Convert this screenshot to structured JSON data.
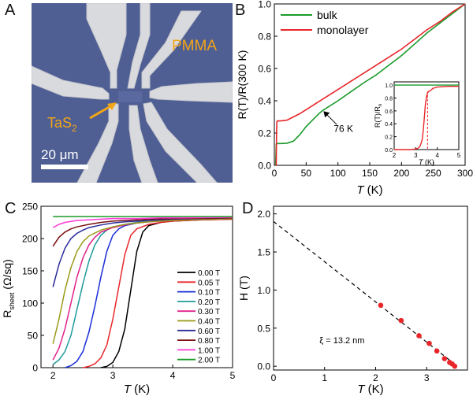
{
  "panels": {
    "a": {
      "letter": "A",
      "label_pmma": "PMMA",
      "label_tas2_main": "TaS",
      "label_tas2_sub": "2",
      "scale_bar": "20 μm"
    },
    "b": {
      "letter": "B"
    },
    "c": {
      "letter": "C"
    },
    "d": {
      "letter": "D"
    }
  },
  "colors": {
    "green": "#1a9a2a",
    "red": "#e8262a",
    "substrate": "#4f5f94",
    "electrode": "#d9dade",
    "label_orange": "#f2a516",
    "black": "#000000"
  },
  "chart_data": [
    {
      "id": "B",
      "type": "line",
      "xlabel_main": "T",
      "xlabel_unit": " (K)",
      "ylabel": "R(T)/R(300 K)",
      "xlim": [
        0,
        300
      ],
      "ylim": [
        0,
        1.0
      ],
      "xticks": [
        0,
        50,
        100,
        150,
        200,
        250,
        300
      ],
      "yticks": [
        0.0,
        0.2,
        0.4,
        0.6,
        0.8,
        1.0
      ],
      "ytick_labels": [
        "0.0",
        "0.2",
        "0.4",
        "0.6",
        "0.8",
        "1.0"
      ],
      "legend_position": "top-left",
      "series": [
        {
          "name": "bulk",
          "color": "#1a9a2a",
          "x": [
            2,
            3,
            5,
            10,
            20,
            30,
            40,
            50,
            60,
            70,
            76,
            80,
            100,
            120,
            140,
            160,
            180,
            200,
            220,
            240,
            260,
            280,
            300
          ],
          "y": [
            0.0,
            0.13,
            0.135,
            0.135,
            0.137,
            0.15,
            0.19,
            0.24,
            0.28,
            0.32,
            0.34,
            0.35,
            0.4,
            0.455,
            0.51,
            0.56,
            0.62,
            0.68,
            0.75,
            0.82,
            0.88,
            0.94,
            1.0
          ]
        },
        {
          "name": "monolayer",
          "color": "#e8262a",
          "x": [
            2,
            3,
            3.5,
            4,
            5,
            10,
            20,
            30,
            40,
            50,
            60,
            80,
            100,
            120,
            140,
            160,
            180,
            200,
            220,
            240,
            260,
            280,
            300
          ],
          "y": [
            0.0,
            0.0,
            0.2,
            0.27,
            0.275,
            0.275,
            0.28,
            0.3,
            0.32,
            0.345,
            0.37,
            0.42,
            0.47,
            0.52,
            0.57,
            0.62,
            0.67,
            0.72,
            0.78,
            0.84,
            0.89,
            0.95,
            1.0
          ]
        }
      ],
      "annotation": {
        "text": "76 K",
        "x": 76,
        "y": 0.34
      },
      "inset": {
        "xlabel_main": "T",
        "xlabel_unit": " (K)",
        "ylabel": "R(T)/R",
        "ylabel_sub": "n",
        "xlim": [
          2,
          5
        ],
        "ylim": [
          0,
          1.05
        ],
        "xticks": [
          2,
          3,
          4,
          5
        ],
        "yticks": [
          0.0,
          0.2,
          0.4,
          0.6,
          0.8,
          1.0
        ],
        "ytick_labels": [
          "0.0",
          "0.2",
          "0.4",
          "0.6",
          "0.8",
          "1.0"
        ],
        "vline_x": 3.55,
        "series": [
          {
            "color": "#1a9a2a",
            "x": [
              2,
              5
            ],
            "y": [
              1.0,
              1.0
            ]
          },
          {
            "color": "#e8262a",
            "x": [
              2.0,
              2.8,
              3.0,
              3.1,
              3.2,
              3.3,
              3.35,
              3.4,
              3.45,
              3.5,
              3.55,
              3.6,
              3.7,
              3.8,
              4.0,
              4.5,
              5.0
            ],
            "y": [
              0.0,
              0.0,
              0.01,
              0.02,
              0.05,
              0.15,
              0.3,
              0.5,
              0.7,
              0.82,
              0.88,
              0.9,
              0.92,
              0.95,
              0.97,
              0.98,
              0.98
            ]
          }
        ]
      }
    },
    {
      "id": "C",
      "type": "line",
      "xlabel_main": "T",
      "xlabel_unit": " (K)",
      "ylabel_main": "R",
      "ylabel_sub": "sheet",
      "ylabel_unit": " (Ω/sq)",
      "xlim": [
        1.8,
        5.0
      ],
      "ylim": [
        0,
        250
      ],
      "xticks": [
        2,
        3,
        4,
        5
      ],
      "yticks": [
        0,
        50,
        100,
        150,
        200,
        250
      ],
      "legend_position": "right",
      "series": [
        {
          "name": "0.00 T",
          "color": "#000000",
          "x": [
            2.8,
            2.9,
            3.0,
            3.1,
            3.2,
            3.3,
            3.4,
            3.5,
            3.6,
            3.8,
            4.0,
            4.5,
            5.0
          ],
          "y": [
            0,
            2,
            8,
            25,
            60,
            120,
            180,
            210,
            220,
            225,
            227,
            229,
            230
          ]
        },
        {
          "name": "0.05 T",
          "color": "#e8262a",
          "x": [
            2.5,
            2.6,
            2.7,
            2.8,
            2.9,
            3.0,
            3.1,
            3.2,
            3.3,
            3.4,
            3.6,
            3.8,
            4.0,
            4.5,
            5.0
          ],
          "y": [
            0,
            2,
            6,
            15,
            35,
            75,
            125,
            175,
            205,
            215,
            222,
            225,
            227,
            229,
            230
          ]
        },
        {
          "name": "0.10 T",
          "color": "#1a2fd9",
          "x": [
            2.2,
            2.3,
            2.4,
            2.5,
            2.6,
            2.7,
            2.8,
            2.9,
            3.0,
            3.1,
            3.2,
            3.4,
            3.6,
            3.8,
            4.0,
            5.0
          ],
          "y": [
            0,
            3,
            10,
            25,
            55,
            95,
            140,
            180,
            205,
            215,
            220,
            224,
            226,
            228,
            229,
            231
          ]
        },
        {
          "name": "0.20 T",
          "color": "#1f9a9a",
          "x": [
            2.0,
            2.1,
            2.2,
            2.3,
            2.4,
            2.5,
            2.6,
            2.7,
            2.8,
            2.9,
            3.0,
            3.2,
            3.4,
            3.6,
            4.0,
            5.0
          ],
          "y": [
            5,
            12,
            25,
            50,
            90,
            130,
            165,
            190,
            205,
            213,
            218,
            222,
            225,
            227,
            229,
            231
          ]
        },
        {
          "name": "0.30 T",
          "color": "#e0218a",
          "x": [
            2.0,
            2.1,
            2.2,
            2.3,
            2.4,
            2.5,
            2.6,
            2.7,
            2.8,
            3.0,
            3.2,
            3.4,
            3.6,
            4.0,
            5.0
          ],
          "y": [
            12,
            30,
            60,
            100,
            140,
            170,
            190,
            202,
            210,
            217,
            221,
            224,
            226,
            228,
            231
          ]
        },
        {
          "name": "0.40 T",
          "color": "#9a9a1a",
          "x": [
            2.0,
            2.1,
            2.2,
            2.3,
            2.4,
            2.5,
            2.6,
            2.8,
            3.0,
            3.2,
            3.4,
            3.6,
            4.0,
            5.0
          ],
          "y": [
            37,
            75,
            120,
            155,
            180,
            195,
            204,
            213,
            218,
            222,
            224,
            226,
            228,
            231
          ]
        },
        {
          "name": "0.60 T",
          "color": "#2a2a9a",
          "x": [
            2.0,
            2.1,
            2.2,
            2.3,
            2.4,
            2.5,
            2.6,
            2.8,
            3.0,
            3.2,
            3.4,
            3.6,
            4.0,
            5.0
          ],
          "y": [
            125,
            160,
            185,
            200,
            208,
            213,
            217,
            221,
            224,
            226,
            227,
            228,
            230,
            232
          ]
        },
        {
          "name": "0.80 T",
          "color": "#7a1010",
          "x": [
            2.0,
            2.1,
            2.2,
            2.3,
            2.4,
            2.6,
            2.8,
            3.0,
            3.2,
            3.4,
            3.6,
            4.0,
            5.0
          ],
          "y": [
            188,
            202,
            210,
            215,
            218,
            222,
            225,
            227,
            228,
            229,
            230,
            231,
            232
          ]
        },
        {
          "name": "1.00 T",
          "color": "#ff3ad8",
          "x": [
            2.0,
            2.1,
            2.2,
            2.4,
            2.6,
            2.8,
            3.0,
            3.4,
            3.8,
            4.2,
            5.0
          ],
          "y": [
            217,
            222,
            225,
            228,
            229,
            230,
            231,
            231,
            232,
            232,
            233
          ]
        },
        {
          "name": "2.00 T",
          "color": "#1a9a2a",
          "x": [
            2.0,
            2.5,
            3.0,
            3.5,
            4.0,
            4.5,
            5.0
          ],
          "y": [
            234,
            234,
            234,
            234,
            234,
            234,
            234
          ]
        }
      ]
    },
    {
      "id": "D",
      "type": "scatter",
      "xlabel_main": "T",
      "xlabel_unit": " (K)",
      "ylabel": "H (T)",
      "xlim": [
        0,
        3.8
      ],
      "ylim": [
        -0.05,
        2.1
      ],
      "xticks": [
        0,
        1,
        2,
        3
      ],
      "yticks": [
        0.0,
        0.5,
        1.0,
        1.5,
        2.0
      ],
      "ytick_labels": [
        "0.0",
        "0.5",
        "1.0",
        "1.5",
        "2.0"
      ],
      "annotation": {
        "text": "ξ = 13.2 nm",
        "x": 0.9,
        "y": 0.3
      },
      "fit_line": {
        "x": [
          0,
          3.6
        ],
        "y": [
          1.9,
          0.0
        ]
      },
      "points": {
        "color": "#e8262a",
        "x": [
          2.1,
          2.5,
          2.85,
          3.05,
          3.2,
          3.35,
          3.45,
          3.5,
          3.55
        ],
        "y": [
          0.8,
          0.6,
          0.4,
          0.3,
          0.2,
          0.1,
          0.05,
          0.03,
          0.0
        ]
      }
    }
  ]
}
